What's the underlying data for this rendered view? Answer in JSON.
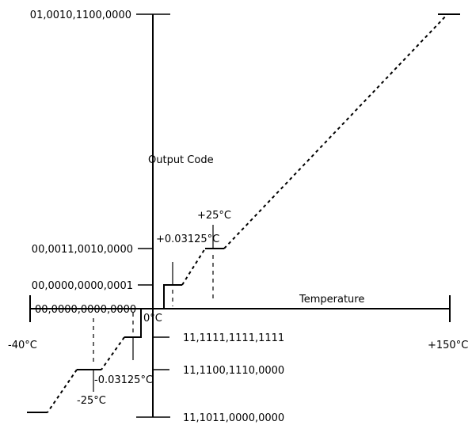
{
  "diagram": {
    "axis_titles": {
      "y": "Output Code",
      "x": "Temperature"
    },
    "codes": {
      "max": "01,0010,1100,0000",
      "plus25": "00,0011,0010,0000",
      "plus_lsb": "00,0000,0000,0001",
      "zero": "00,0000,0000,0000",
      "minus_lsb": "11,1111,1111,1111",
      "minus25": "11,1100,1110,0000",
      "min": "11,1011,0000,0000"
    },
    "temperatures": {
      "min": "-40°C",
      "max": "+150°C",
      "zero": "0°C",
      "plus25": "+25°C",
      "plus_lsb": "+0.03125°C",
      "minus_lsb": "-0.03125°C",
      "minus25": "-25°C"
    }
  }
}
